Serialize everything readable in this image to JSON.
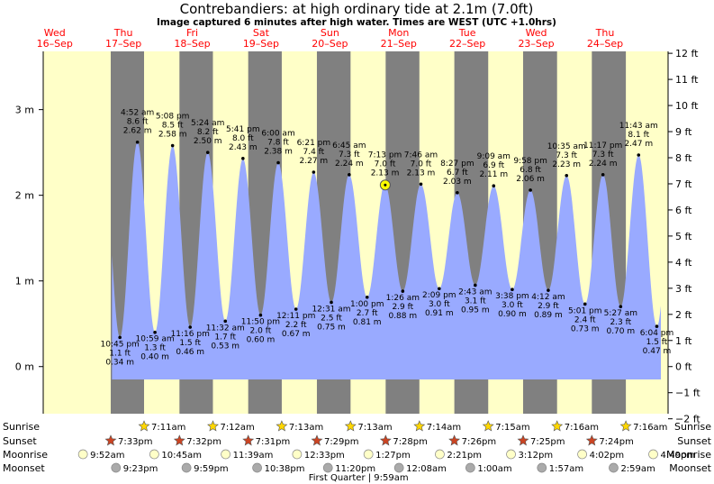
{
  "title": "Contrebandiers: at high  ordinary tide at 2.1m (7.0ft)",
  "subtitle": "Image captured 6 minutes after high water. Times are WEST (UTC +1.0hrs)",
  "colors": {
    "day": "#ffffc8",
    "night": "#808080",
    "tide": "#99aaff",
    "date": "#ff0000",
    "sun": "#ffd700",
    "sunset": "#cc4422",
    "moon": "#ffffc8",
    "moonset": "#aaaaaa"
  },
  "chart_data": {
    "type": "area",
    "x_unit": "days from 16-Sep 00:00",
    "y_unit": "m",
    "ylim": [
      -0.55,
      3.68
    ],
    "y_ticks_m": [
      "0 m",
      "1 m",
      "2 m",
      "3 m"
    ],
    "y_ticks_ft": [
      "−2 ft",
      "−1 ft",
      "0 ft",
      "1 ft",
      "2 ft",
      "3 ft",
      "4 ft",
      "5 ft",
      "6 ft",
      "7 ft",
      "8 ft",
      "9 ft",
      "10 ft",
      "11 ft",
      "12 ft"
    ],
    "days": [
      {
        "dow": "Wed",
        "date": "16–Sep"
      },
      {
        "dow": "Thu",
        "date": "17–Sep"
      },
      {
        "dow": "Fri",
        "date": "18–Sep"
      },
      {
        "dow": "Sat",
        "date": "19–Sep"
      },
      {
        "dow": "Sun",
        "date": "20–Sep"
      },
      {
        "dow": "Mon",
        "date": "21–Sep"
      },
      {
        "dow": "Tue",
        "date": "22–Sep"
      },
      {
        "dow": "Wed",
        "date": "23–Sep"
      },
      {
        "dow": "Thu",
        "date": "24–Sep"
      }
    ],
    "nights_hours": [
      [
        19.55,
        31.18
      ],
      [
        43.53,
        55.2
      ],
      [
        67.52,
        79.22
      ],
      [
        91.48,
        103.22
      ],
      [
        115.47,
        127.23
      ],
      [
        139.43,
        151.25
      ],
      [
        163.42,
        175.27
      ],
      [
        187.4,
        199.27
      ]
    ],
    "extremes": [
      {
        "h": 22.75,
        "m": 0.34,
        "kind": "low",
        "time": "10:45 pm",
        "ft": "1.1 ft",
        "ht": "0.34 m"
      },
      {
        "h": 28.87,
        "m": 2.62,
        "kind": "high",
        "time": "4:52 am",
        "ft": "8.6 ft",
        "ht": "2.62 m"
      },
      {
        "h": 34.98,
        "m": 0.4,
        "kind": "low",
        "time": "10:59 am",
        "ft": "1.3 ft",
        "ht": "0.40 m"
      },
      {
        "h": 41.13,
        "m": 2.58,
        "kind": "high",
        "time": "5:08 pm",
        "ft": "8.5 ft",
        "ht": "2.58 m"
      },
      {
        "h": 47.27,
        "m": 0.46,
        "kind": "low",
        "time": "11:16 pm",
        "ft": "1.5 ft",
        "ht": "0.46 m"
      },
      {
        "h": 53.4,
        "m": 2.5,
        "kind": "high",
        "time": "5:24 am",
        "ft": "8.2 ft",
        "ht": "2.50 m"
      },
      {
        "h": 59.53,
        "m": 0.53,
        "kind": "low",
        "time": "11:32 am",
        "ft": "1.7 ft",
        "ht": "0.53 m"
      },
      {
        "h": 65.68,
        "m": 2.43,
        "kind": "high",
        "time": "5:41 pm",
        "ft": "8.0 ft",
        "ht": "2.43 m"
      },
      {
        "h": 71.83,
        "m": 0.6,
        "kind": "low",
        "time": "11:50 pm",
        "ft": "2.0 ft",
        "ht": "0.60 m"
      },
      {
        "h": 78.0,
        "m": 2.38,
        "kind": "high",
        "time": "6:00 am",
        "ft": "7.8 ft",
        "ht": "2.38 m"
      },
      {
        "h": 84.18,
        "m": 0.67,
        "kind": "low",
        "time": "12:11 pm",
        "ft": "2.2 ft",
        "ht": "0.67 m"
      },
      {
        "h": 90.35,
        "m": 2.27,
        "kind": "high",
        "time": "6:21 pm",
        "ft": "7.4 ft",
        "ht": "2.27 m"
      },
      {
        "h": 96.52,
        "m": 0.75,
        "kind": "low",
        "time": "12:31 am",
        "ft": "2.5 ft",
        "ht": "0.75 m"
      },
      {
        "h": 102.75,
        "m": 2.24,
        "kind": "high",
        "time": "6:45 am",
        "ft": "7.3 ft",
        "ht": "2.24 m"
      },
      {
        "h": 109.0,
        "m": 0.81,
        "kind": "low",
        "time": "1:00 pm",
        "ft": "2.7 ft",
        "ht": "0.81 m"
      },
      {
        "h": 115.22,
        "m": 2.13,
        "kind": "high",
        "time": "7:13 pm",
        "ft": "7.0 ft",
        "ht": "2.13 m"
      },
      {
        "h": 121.43,
        "m": 0.88,
        "kind": "low",
        "time": "1:26 am",
        "ft": "2.9 ft",
        "ht": "0.88 m"
      },
      {
        "h": 127.77,
        "m": 2.13,
        "kind": "high",
        "time": "7:46 am",
        "ft": "7.0 ft",
        "ht": "2.13 m"
      },
      {
        "h": 134.15,
        "m": 0.91,
        "kind": "low",
        "time": "2:09 pm",
        "ft": "3.0 ft",
        "ht": "0.91 m"
      },
      {
        "h": 140.45,
        "m": 2.03,
        "kind": "high",
        "time": "8:27 pm",
        "ft": "6.7 ft",
        "ht": "2.03 m"
      },
      {
        "h": 146.72,
        "m": 0.95,
        "kind": "low",
        "time": "2:43 am",
        "ft": "3.1 ft",
        "ht": "0.95 m"
      },
      {
        "h": 153.15,
        "m": 2.11,
        "kind": "high",
        "time": "9:09 am",
        "ft": "6.9 ft",
        "ht": "2.11 m"
      },
      {
        "h": 159.63,
        "m": 0.9,
        "kind": "low",
        "time": "3:38 pm",
        "ft": "3.0 ft",
        "ht": "0.90 m"
      },
      {
        "h": 165.97,
        "m": 2.06,
        "kind": "high",
        "time": "9:58 pm",
        "ft": "6.8 ft",
        "ht": "2.06 m"
      },
      {
        "h": 172.2,
        "m": 0.89,
        "kind": "low",
        "time": "4:12 am",
        "ft": "2.9 ft",
        "ht": "0.89 m"
      },
      {
        "h": 178.58,
        "m": 2.23,
        "kind": "high",
        "time": "10:35 am",
        "ft": "7.3 ft",
        "ht": "2.23 m"
      },
      {
        "h": 185.02,
        "m": 0.73,
        "kind": "low",
        "time": "5:01 pm",
        "ft": "2.4 ft",
        "ht": "0.73 m"
      },
      {
        "h": 191.28,
        "m": 2.24,
        "kind": "high",
        "time": "11:17 pm",
        "ft": "7.3 ft",
        "ht": "2.24 m"
      },
      {
        "h": 197.45,
        "m": 0.7,
        "kind": "low",
        "time": "5:27 am",
        "ft": "2.3 ft",
        "ht": "0.70 m"
      },
      {
        "h": 203.72,
        "m": 2.47,
        "kind": "high",
        "time": "11:43 am",
        "ft": "8.1 ft",
        "ht": "2.47 m"
      },
      {
        "h": 210.07,
        "m": 0.47,
        "kind": "low",
        "time": "6:04 pm",
        "ft": "1.5 ft",
        "ht": "0.47 m"
      }
    ],
    "current": {
      "h": 115.32,
      "m": 2.12
    },
    "rows": {
      "labels": [
        "Sunrise",
        "Sunset",
        "Moonrise",
        "Moonset"
      ],
      "sunrise": [
        {
          "h": 31.18,
          "t": "7:11am"
        },
        {
          "h": 55.2,
          "t": "7:12am"
        },
        {
          "h": 79.22,
          "t": "7:13am"
        },
        {
          "h": 103.22,
          "t": "7:13am"
        },
        {
          "h": 127.23,
          "t": "7:14am"
        },
        {
          "h": 151.25,
          "t": "7:15am"
        },
        {
          "h": 175.27,
          "t": "7:16am"
        },
        {
          "h": 199.27,
          "t": "7:16am"
        }
      ],
      "sunset": [
        {
          "h": 19.55,
          "t": "7:33pm"
        },
        {
          "h": 43.53,
          "t": "7:32pm"
        },
        {
          "h": 67.52,
          "t": "7:31pm"
        },
        {
          "h": 91.48,
          "t": "7:29pm"
        },
        {
          "h": 115.47,
          "t": "7:28pm"
        },
        {
          "h": 139.43,
          "t": "7:26pm"
        },
        {
          "h": 163.42,
          "t": "7:25pm"
        },
        {
          "h": 187.4,
          "t": "7:24pm"
        }
      ],
      "moonrise": [
        {
          "h": 9.87,
          "t": "9:52am"
        },
        {
          "h": 34.75,
          "t": "10:45am"
        },
        {
          "h": 59.65,
          "t": "11:39am"
        },
        {
          "h": 84.55,
          "t": "12:33pm"
        },
        {
          "h": 109.45,
          "t": "1:27pm"
        },
        {
          "h": 134.35,
          "t": "2:21pm"
        },
        {
          "h": 159.2,
          "t": "3:12pm"
        },
        {
          "h": 184.03,
          "t": "4:02pm"
        },
        {
          "h": 208.82,
          "t": "4:49pm"
        }
      ],
      "moonset": [
        {
          "h": 21.38,
          "t": "9:23pm"
        },
        {
          "h": 45.98,
          "t": "9:59pm"
        },
        {
          "h": 70.63,
          "t": "10:38pm"
        },
        {
          "h": 95.33,
          "t": "11:20pm"
        },
        {
          "h": 120.13,
          "t": "12:08am"
        },
        {
          "h": 145.0,
          "t": "1:00am"
        },
        {
          "h": 169.95,
          "t": "1:57am"
        },
        {
          "h": 194.98,
          "t": "2:59am"
        }
      ]
    },
    "phase": {
      "h": 106.0,
      "label": "First Quarter | 9:59am"
    }
  }
}
